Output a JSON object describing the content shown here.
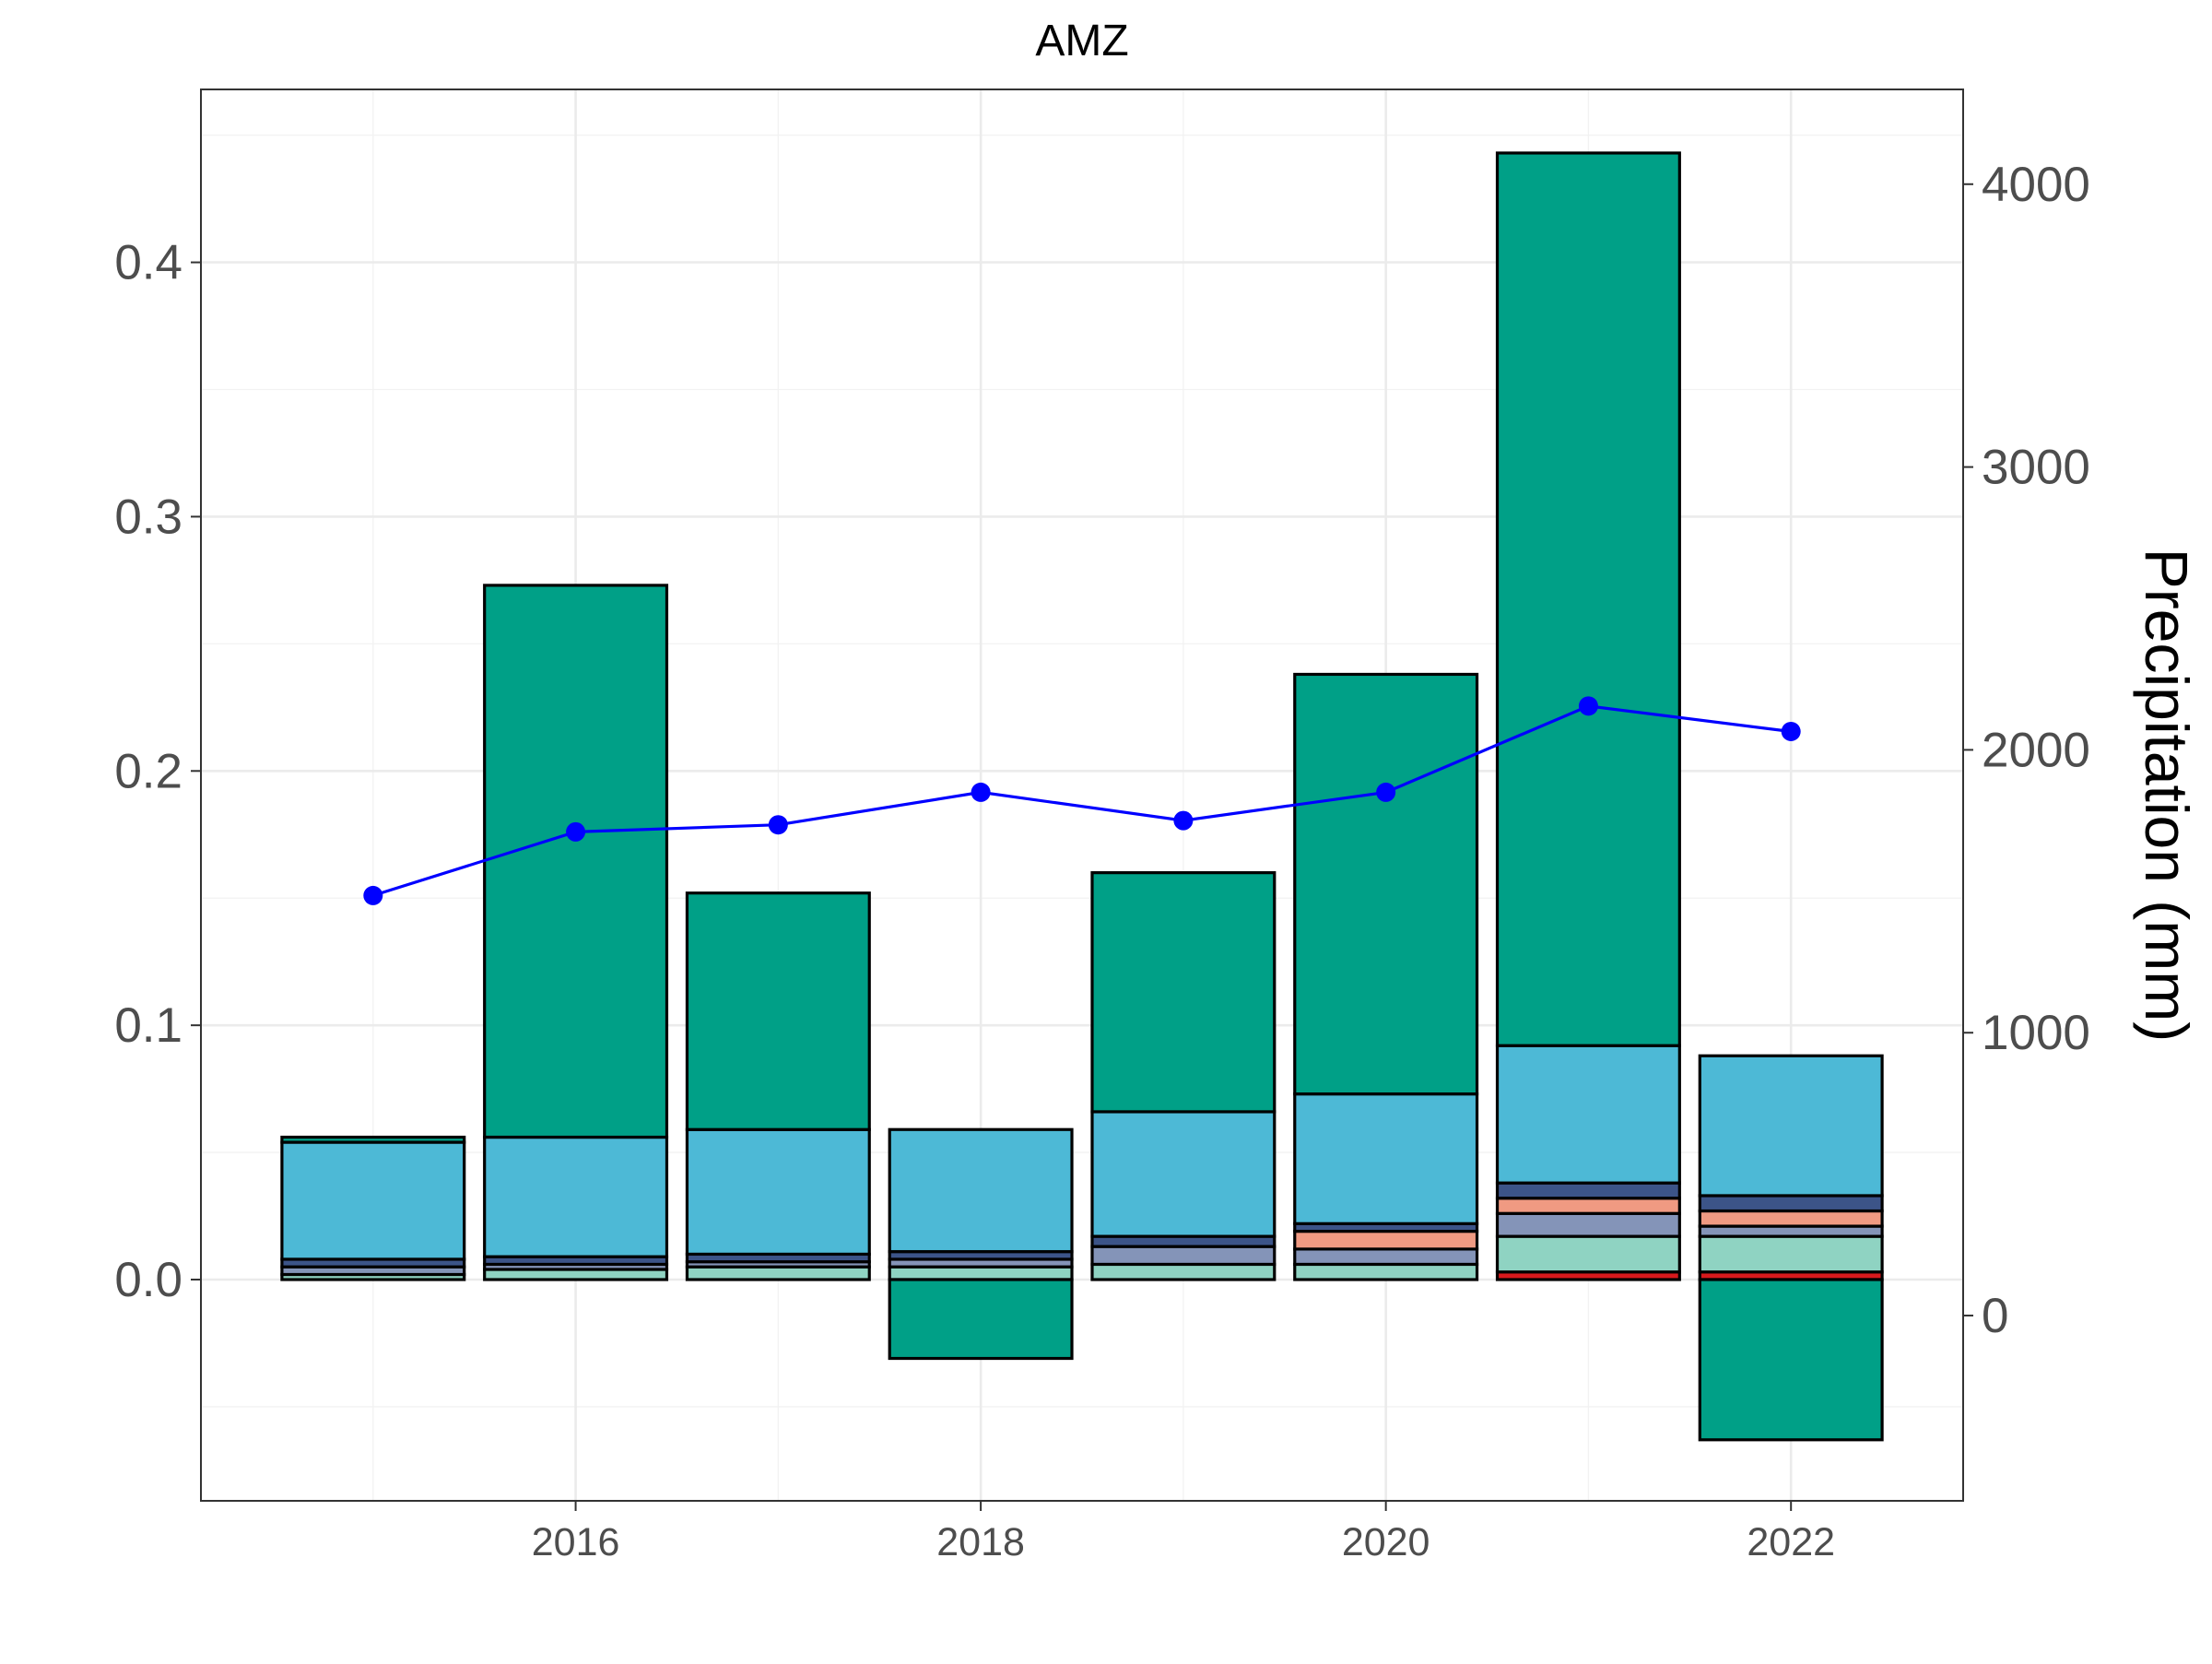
{
  "chart_data": {
    "type": "bar",
    "subtype": "stacked-bar-with-line-secondary-axis",
    "title": "AMZ",
    "xlabel": "",
    "ylabel_left": "",
    "ylabel_right": "Precipitation (mm)",
    "x_ticks": [
      "2016",
      "2018",
      "2020",
      "2022"
    ],
    "y_left_ticks": [
      "0.0",
      "0.1",
      "0.2",
      "0.3",
      "0.4"
    ],
    "y_right_ticks": [
      "0",
      "1000",
      "2000",
      "3000",
      "4000"
    ],
    "xlim": [
      2014.15,
      2022.85
    ],
    "ylim_left": [
      -0.087,
      0.468
    ],
    "ylim_right": [
      -655,
      4335
    ],
    "grid": true,
    "legend": "none",
    "colors": {
      "red": "#d7191c",
      "mint": "#8fd3c2",
      "slate": "#8494b8",
      "salmon": "#f09a82",
      "navy": "#3c5488",
      "sky": "#4db9d6",
      "teal": "#00a087",
      "line": "#0000ff"
    },
    "bars": [
      {
        "x": 2015,
        "pos": [
          {
            "c": "mint",
            "v": 0.002
          },
          {
            "c": "slate",
            "v": 0.003
          },
          {
            "c": "navy",
            "v": 0.003
          },
          {
            "c": "sky",
            "v": 0.046
          },
          {
            "c": "teal",
            "v": 0.002
          }
        ],
        "neg": []
      },
      {
        "x": 2016,
        "pos": [
          {
            "c": "mint",
            "v": 0.004
          },
          {
            "c": "slate",
            "v": 0.002
          },
          {
            "c": "navy",
            "v": 0.003
          },
          {
            "c": "sky",
            "v": 0.047
          },
          {
            "c": "teal",
            "v": 0.217
          }
        ],
        "neg": []
      },
      {
        "x": 2017,
        "pos": [
          {
            "c": "mint",
            "v": 0.005
          },
          {
            "c": "slate",
            "v": 0.002
          },
          {
            "c": "navy",
            "v": 0.003
          },
          {
            "c": "sky",
            "v": 0.049
          },
          {
            "c": "teal",
            "v": 0.093
          }
        ],
        "neg": []
      },
      {
        "x": 2018,
        "pos": [
          {
            "c": "mint",
            "v": 0.005
          },
          {
            "c": "slate",
            "v": 0.003
          },
          {
            "c": "navy",
            "v": 0.003
          },
          {
            "c": "sky",
            "v": 0.048
          }
        ],
        "neg": [
          {
            "c": "teal",
            "v": -0.031
          }
        ]
      },
      {
        "x": 2019,
        "pos": [
          {
            "c": "mint",
            "v": 0.006
          },
          {
            "c": "slate",
            "v": 0.007
          },
          {
            "c": "navy",
            "v": 0.004
          },
          {
            "c": "sky",
            "v": 0.049
          },
          {
            "c": "teal",
            "v": 0.094
          }
        ],
        "neg": []
      },
      {
        "x": 2020,
        "pos": [
          {
            "c": "mint",
            "v": 0.006
          },
          {
            "c": "slate",
            "v": 0.006
          },
          {
            "c": "salmon",
            "v": 0.007
          },
          {
            "c": "navy",
            "v": 0.003
          },
          {
            "c": "sky",
            "v": 0.051
          },
          {
            "c": "teal",
            "v": 0.165
          }
        ],
        "neg": []
      },
      {
        "x": 2021,
        "pos": [
          {
            "c": "red",
            "v": 0.003
          },
          {
            "c": "mint",
            "v": 0.014
          },
          {
            "c": "slate",
            "v": 0.009
          },
          {
            "c": "salmon",
            "v": 0.006
          },
          {
            "c": "navy",
            "v": 0.006
          },
          {
            "c": "sky",
            "v": 0.054
          },
          {
            "c": "teal",
            "v": 0.351
          }
        ],
        "neg": []
      },
      {
        "x": 2022,
        "pos": [
          {
            "c": "red",
            "v": 0.003
          },
          {
            "c": "mint",
            "v": 0.014
          },
          {
            "c": "slate",
            "v": 0.004
          },
          {
            "c": "salmon",
            "v": 0.006
          },
          {
            "c": "navy",
            "v": 0.006
          },
          {
            "c": "sky",
            "v": 0.055
          }
        ],
        "neg": [
          {
            "c": "teal",
            "v": -0.063
          }
        ]
      }
    ],
    "series": [
      {
        "type": "line",
        "axis": "right",
        "color": "#0000ff",
        "x": [
          2015,
          2016,
          2017,
          2018,
          2019,
          2020,
          2021,
          2022
        ],
        "values": [
          1485,
          1710,
          1735,
          1850,
          1750,
          1850,
          2155,
          2065
        ]
      }
    ]
  }
}
